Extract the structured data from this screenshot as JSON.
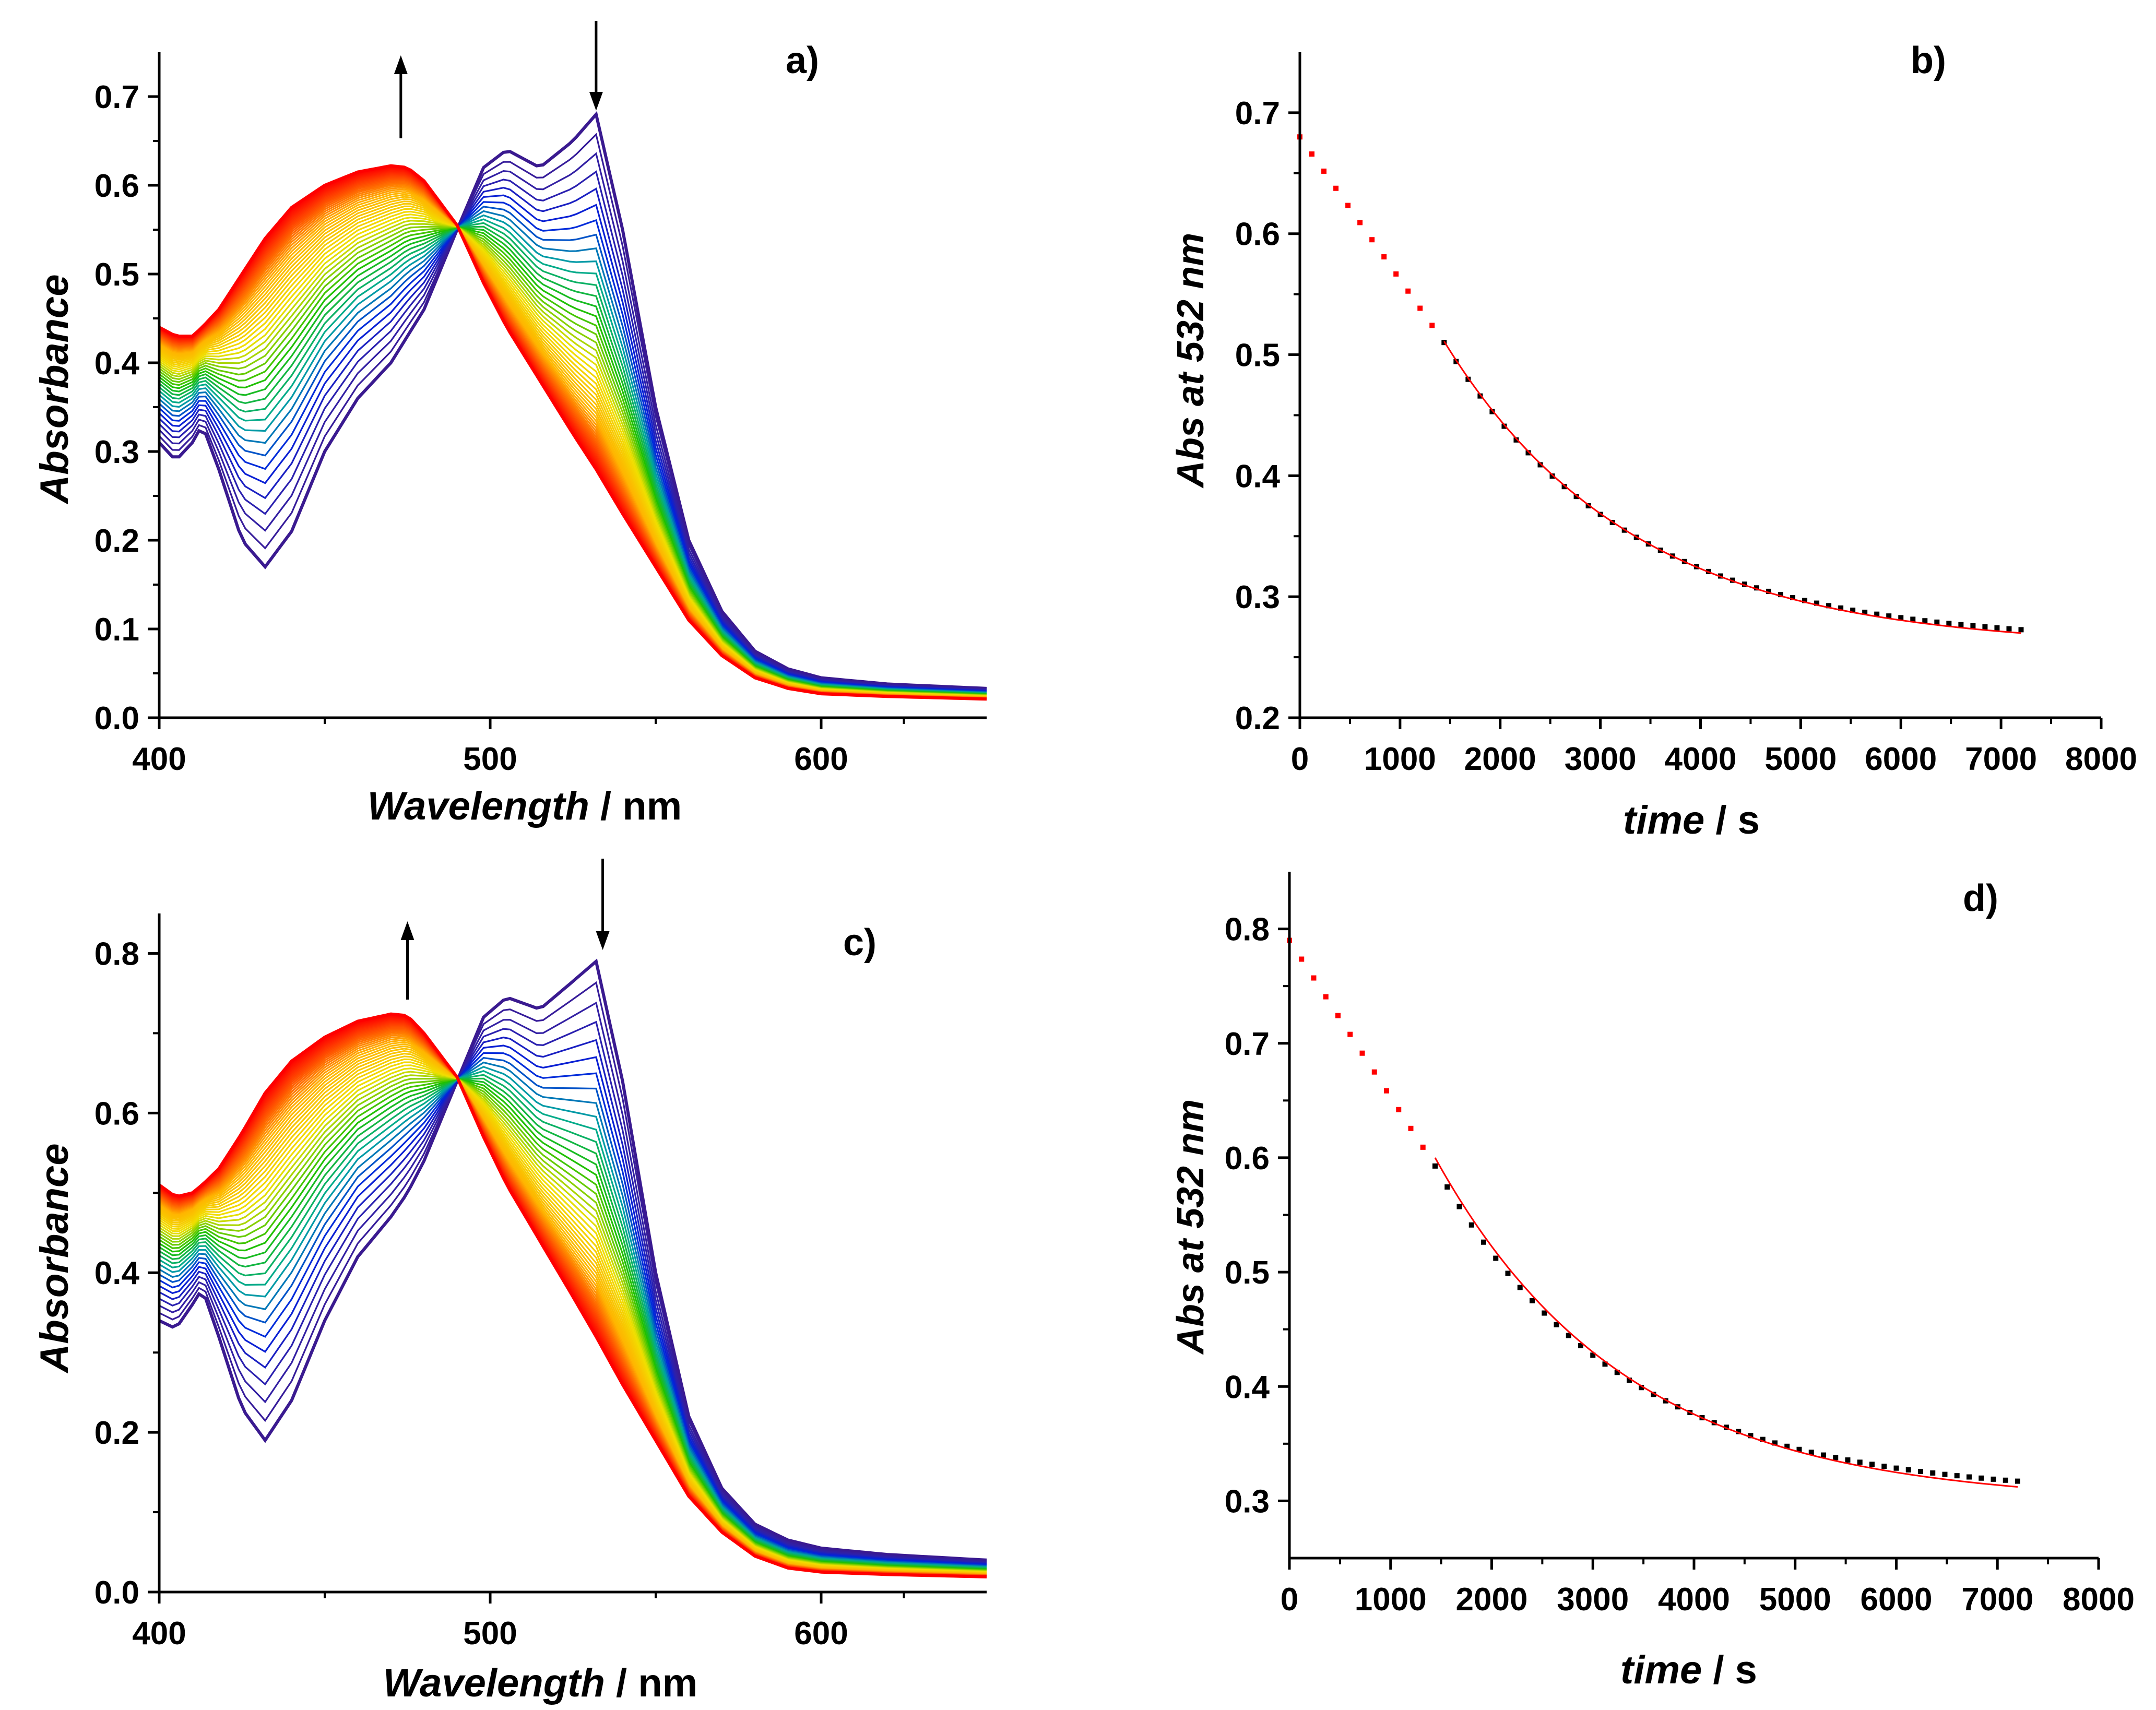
{
  "chart_data": [
    {
      "panel": "a)",
      "type": "line",
      "xlabel_italic": "Wavelength",
      "xlabel_unit": " / nm",
      "ylabel": "Absorbance",
      "xlim": [
        400,
        650
      ],
      "ylim": [
        0,
        0.75
      ],
      "xticks": [
        400,
        500,
        600
      ],
      "xtick_labels": [
        "400",
        "500",
        "600"
      ],
      "yticks": [
        0.0,
        0.1,
        0.2,
        0.3,
        0.4,
        0.5,
        0.6,
        0.7
      ],
      "ytick_labels": [
        "0.0",
        "0.1",
        "0.2",
        "0.3",
        "0.4",
        "0.5",
        "0.6",
        "0.7"
      ],
      "spectra": {
        "x": [
          400,
          405,
          410,
          413,
          418,
          425,
          432,
          440,
          450,
          460,
          470,
          475,
          480,
          490,
          498,
          505,
          515,
          525,
          532,
          540,
          550,
          560,
          570,
          580,
          590,
          600,
          620,
          650
        ],
        "initial": [
          0.31,
          0.29,
          0.31,
          0.33,
          0.28,
          0.2,
          0.17,
          0.21,
          0.3,
          0.36,
          0.4,
          0.43,
          0.46,
          0.55,
          0.62,
          0.64,
          0.62,
          0.65,
          0.68,
          0.55,
          0.35,
          0.2,
          0.12,
          0.075,
          0.055,
          0.045,
          0.038,
          0.033
        ],
        "final": [
          0.44,
          0.43,
          0.43,
          0.44,
          0.46,
          0.5,
          0.54,
          0.575,
          0.6,
          0.615,
          0.622,
          0.62,
          0.605,
          0.555,
          0.49,
          0.44,
          0.38,
          0.32,
          0.28,
          0.23,
          0.17,
          0.11,
          0.07,
          0.045,
          0.033,
          0.027,
          0.024,
          0.021
        ],
        "count": 55
      },
      "arrows": [
        {
          "x": 473,
          "direction": "up"
        },
        {
          "x": 532,
          "direction": "down"
        }
      ]
    },
    {
      "panel": "b)",
      "type": "scatter",
      "xlabel_italic": "time",
      "xlabel_unit": " / s",
      "ylabel": "Abs at 532 nm",
      "xlim": [
        0,
        8000
      ],
      "ylim": [
        0.2,
        0.75
      ],
      "xticks": [
        0,
        1000,
        2000,
        3000,
        4000,
        5000,
        6000,
        7000,
        8000
      ],
      "xtick_labels": [
        "0",
        "1000",
        "2000",
        "3000",
        "4000",
        "5000",
        "6000",
        "7000",
        "8000"
      ],
      "yticks": [
        0.2,
        0.3,
        0.4,
        0.5,
        0.6,
        0.7
      ],
      "ytick_labels": [
        "0.2",
        "0.3",
        "0.4",
        "0.5",
        "0.6",
        "0.7"
      ],
      "kinetics": {
        "a0": 0.68,
        "a_inf": 0.262,
        "k": 0.000545,
        "t_switch": 1440,
        "t_end": 7200,
        "dt": 120,
        "initial_slope": 0.000118
      },
      "fit": {
        "a_inf": 0.258,
        "k": 0.00053,
        "amp": 0.253,
        "t_start": 1440,
        "t_end": 7200
      }
    },
    {
      "panel": "c)",
      "type": "line",
      "xlabel_italic": "Wavelength",
      "xlabel_unit": " / nm",
      "ylabel": "Absorbance",
      "xlim": [
        400,
        650
      ],
      "ylim": [
        0,
        0.85
      ],
      "xticks": [
        400,
        500,
        600
      ],
      "xtick_labels": [
        "400",
        "500",
        "600"
      ],
      "yticks": [
        0.0,
        0.2,
        0.4,
        0.6,
        0.8
      ],
      "ytick_labels": [
        "0.0",
        "0.2",
        "0.4",
        "0.6",
        "0.8"
      ],
      "spectra": {
        "x": [
          400,
          405,
          410,
          413,
          418,
          425,
          432,
          440,
          450,
          460,
          470,
          475,
          480,
          490,
          498,
          505,
          515,
          525,
          532,
          540,
          550,
          560,
          570,
          580,
          590,
          600,
          620,
          650
        ],
        "initial": [
          0.34,
          0.33,
          0.36,
          0.38,
          0.32,
          0.23,
          0.19,
          0.24,
          0.34,
          0.42,
          0.47,
          0.5,
          0.54,
          0.64,
          0.72,
          0.745,
          0.73,
          0.765,
          0.79,
          0.64,
          0.4,
          0.22,
          0.13,
          0.085,
          0.065,
          0.055,
          0.047,
          0.04
        ],
        "final": [
          0.51,
          0.495,
          0.5,
          0.51,
          0.53,
          0.575,
          0.625,
          0.665,
          0.695,
          0.715,
          0.724,
          0.722,
          0.7,
          0.645,
          0.57,
          0.51,
          0.44,
          0.37,
          0.32,
          0.26,
          0.19,
          0.12,
          0.075,
          0.045,
          0.03,
          0.025,
          0.022,
          0.019
        ],
        "count": 55
      },
      "arrows": [
        {
          "x": 475,
          "direction": "up"
        },
        {
          "x": 534,
          "direction": "down"
        }
      ]
    },
    {
      "panel": "d)",
      "type": "scatter",
      "xlabel_italic": "time",
      "xlabel_unit": " / s",
      "ylabel": "Abs at 532 nm",
      "xlim": [
        0,
        8000
      ],
      "ylim": [
        0.25,
        0.85
      ],
      "xticks": [
        0,
        1000,
        2000,
        3000,
        4000,
        5000,
        6000,
        7000,
        8000
      ],
      "xtick_labels": [
        "0",
        "1000",
        "2000",
        "3000",
        "4000",
        "5000",
        "6000",
        "7000",
        "8000"
      ],
      "yticks": [
        0.3,
        0.4,
        0.5,
        0.6,
        0.7,
        0.8
      ],
      "ytick_labels": [
        "0.3",
        "0.4",
        "0.5",
        "0.6",
        "0.7",
        "0.8"
      ],
      "kinetics": {
        "a0": 0.79,
        "a_inf": 0.305,
        "k": 0.000548,
        "t_switch": 1440,
        "t_end": 7200,
        "dt": 120,
        "initial_slope": 0.000137
      },
      "fit": {
        "a_inf": 0.298,
        "k": 0.00053,
        "amp": 0.302,
        "t_start": 1440,
        "t_end": 7200
      }
    }
  ],
  "colors": {
    "axis": "#000000",
    "spectrum_ramp": [
      "#FF0000",
      "#FFB400",
      "#F0E000",
      "#20C000",
      "#00A8A0",
      "#0020E0",
      "#3020A8",
      "#3A1A90"
    ],
    "points_early": "#FF0000",
    "points_late": "#000000",
    "fit_line": "#FF0000",
    "arrow": "#000000"
  }
}
